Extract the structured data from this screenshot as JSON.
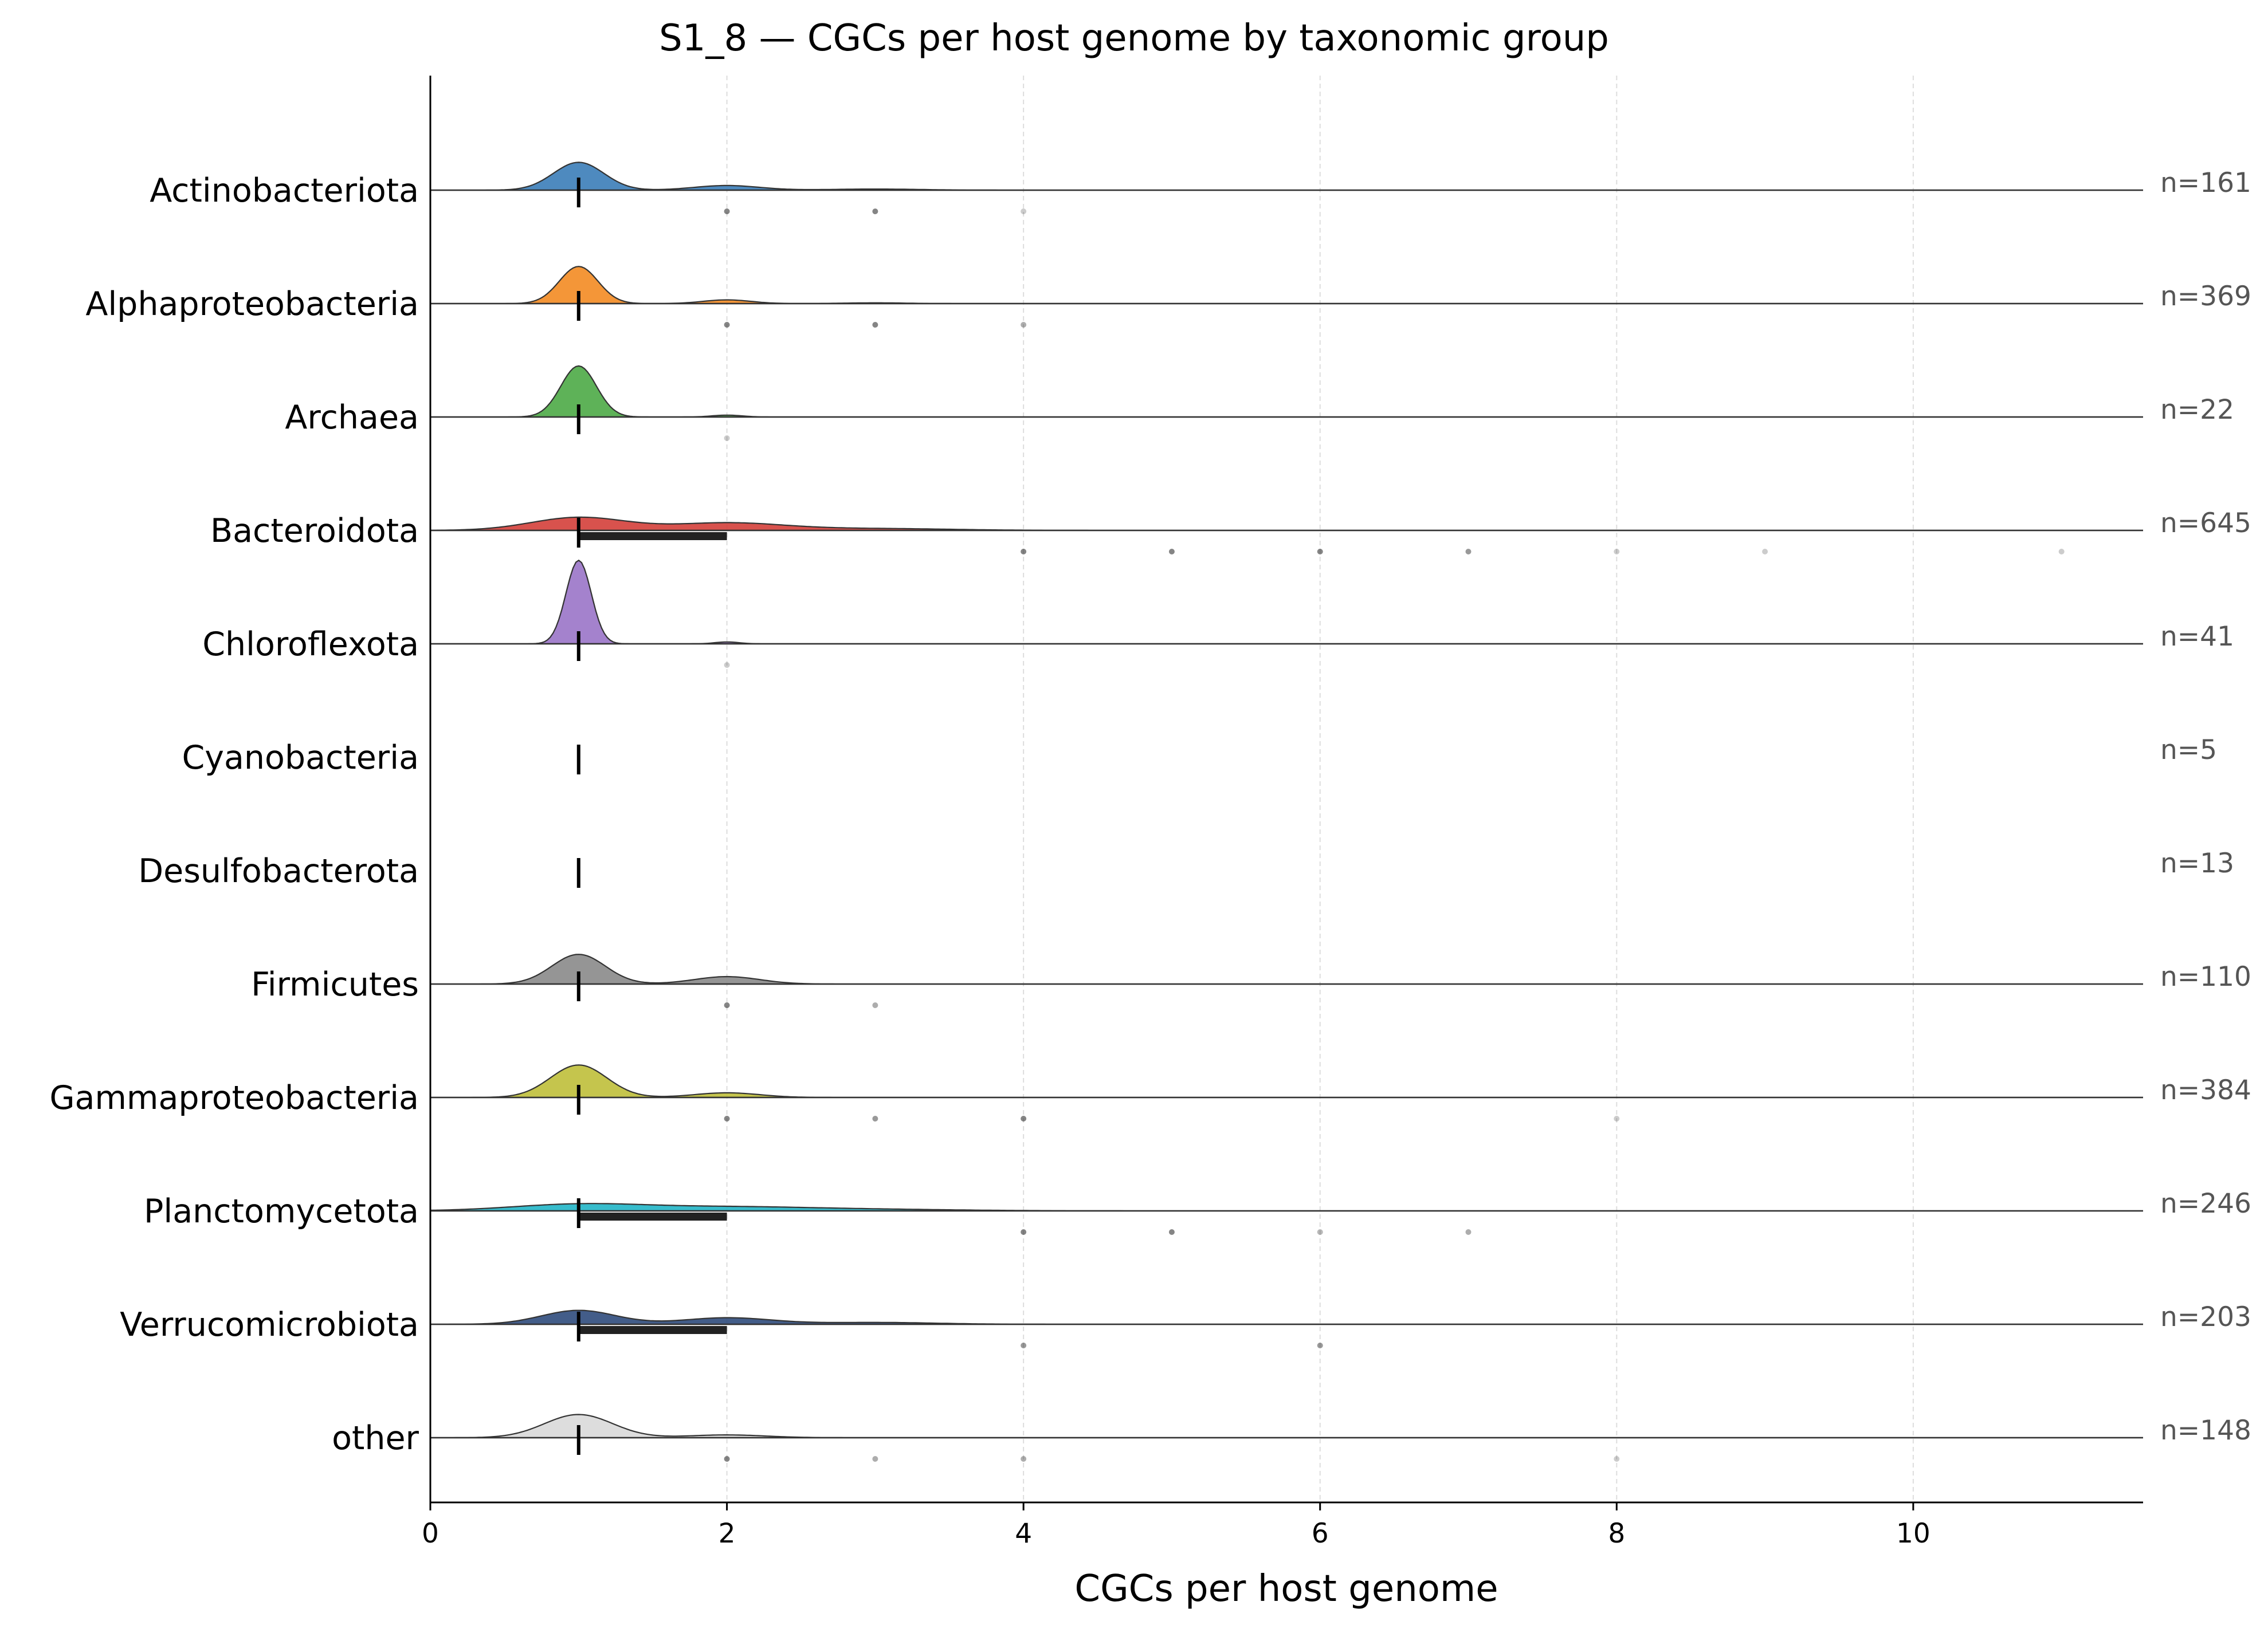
{
  "chart_data": {
    "type": "ridgeline",
    "title": "S1_8 — CGCs per host genome by taxonomic group",
    "xlabel": "CGCs per host genome",
    "xlim": [
      0,
      11.55
    ],
    "xticks": [
      0,
      2,
      4,
      6,
      8,
      10
    ],
    "grid": "vertical dashed",
    "series": [
      {
        "name": "Actinobacteriota",
        "n_label": "n=161",
        "color": "#3b7db8",
        "n": 161,
        "median": 1,
        "q1": 1,
        "q3": 1,
        "modes": [
          [
            1,
            0.3,
            0.17
          ],
          [
            2,
            0.05,
            0.22
          ],
          [
            3,
            0.012,
            0.3
          ]
        ],
        "points": [
          [
            2,
            0.6
          ],
          [
            3,
            0.6
          ],
          [
            4,
            0.25
          ]
        ]
      },
      {
        "name": "Alphaproteobacteria",
        "n_label": "n=369",
        "color": "#f38b22",
        "n": 369,
        "median": 1,
        "q1": 1,
        "q3": 1,
        "modes": [
          [
            1,
            0.4,
            0.13
          ],
          [
            2,
            0.04,
            0.16
          ],
          [
            3,
            0.008,
            0.2
          ]
        ],
        "points": [
          [
            2,
            0.6
          ],
          [
            3,
            0.6
          ],
          [
            4,
            0.4
          ]
        ]
      },
      {
        "name": "Archaea",
        "n_label": "n=22",
        "color": "#4caa46",
        "n": 22,
        "median": 1,
        "q1": 1,
        "q3": 1,
        "modes": [
          [
            1,
            0.55,
            0.12
          ],
          [
            2,
            0.02,
            0.1
          ]
        ],
        "points": [
          [
            2,
            0.25
          ]
        ]
      },
      {
        "name": "Bacteroidota",
        "n_label": "n=645",
        "color": "#d43f3a",
        "n": 645,
        "median": 1,
        "q1": 1,
        "q3": 2,
        "modes": [
          [
            1,
            0.14,
            0.32
          ],
          [
            2,
            0.08,
            0.38
          ],
          [
            3,
            0.02,
            0.5
          ]
        ],
        "points": [
          [
            4,
            0.6
          ],
          [
            5,
            0.6
          ],
          [
            6,
            0.6
          ],
          [
            7,
            0.5
          ],
          [
            8,
            0.25
          ],
          [
            9,
            0.25
          ],
          [
            11,
            0.25
          ]
        ]
      },
      {
        "name": "Chloroflexota",
        "n_label": "n=41",
        "color": "#9a74c8",
        "n": 41,
        "median": 1,
        "q1": 1,
        "q3": 1,
        "modes": [
          [
            1,
            0.9,
            0.085
          ],
          [
            2,
            0.02,
            0.08
          ]
        ],
        "points": [
          [
            2,
            0.25
          ]
        ]
      },
      {
        "name": "Cyanobacteria",
        "n_label": "n=5",
        "color": "#8c564b",
        "n": 5,
        "median": 1,
        "q1": 1,
        "q3": 1,
        "modes": [],
        "points": []
      },
      {
        "name": "Desulfobacterota",
        "n_label": "n=13",
        "color": "#e377c2",
        "n": 13,
        "median": 1,
        "q1": 1,
        "q3": 1,
        "modes": [],
        "points": []
      },
      {
        "name": "Firmicutes",
        "n_label": "n=110",
        "color": "#8a8a8a",
        "n": 110,
        "median": 1,
        "q1": 1,
        "q3": 1,
        "modes": [
          [
            1,
            0.32,
            0.18
          ],
          [
            2,
            0.08,
            0.22
          ]
        ],
        "points": [
          [
            2,
            0.6
          ],
          [
            3,
            0.4
          ]
        ]
      },
      {
        "name": "Gammaproteobacteria",
        "n_label": "n=384",
        "color": "#bfbf3a",
        "n": 384,
        "median": 1,
        "q1": 1,
        "q3": 1,
        "modes": [
          [
            1,
            0.35,
            0.19
          ],
          [
            2,
            0.05,
            0.22
          ]
        ],
        "points": [
          [
            2,
            0.6
          ],
          [
            3,
            0.5
          ],
          [
            4,
            0.6
          ],
          [
            8,
            0.25
          ]
        ]
      },
      {
        "name": "Planctomycetota",
        "n_label": "n=246",
        "color": "#21b5c7",
        "n": 246,
        "median": 1,
        "q1": 1,
        "q3": 2,
        "modes": [
          [
            1,
            0.07,
            0.45
          ],
          [
            2,
            0.04,
            0.55
          ],
          [
            3,
            0.015,
            0.6
          ]
        ],
        "points": [
          [
            4,
            0.6
          ],
          [
            5,
            0.6
          ],
          [
            6,
            0.35
          ],
          [
            7,
            0.4
          ]
        ]
      },
      {
        "name": "Verrucomicrobiota",
        "n_label": "n=203",
        "color": "#2f4b7c",
        "n": 203,
        "median": 1,
        "q1": 1,
        "q3": 2,
        "modes": [
          [
            1,
            0.15,
            0.25
          ],
          [
            2,
            0.07,
            0.3
          ],
          [
            3,
            0.02,
            0.4
          ]
        ],
        "points": [
          [
            4,
            0.5
          ],
          [
            6,
            0.5
          ]
        ]
      },
      {
        "name": "other",
        "n_label": "n=148",
        "color": "#d9d9d9",
        "n": 148,
        "median": 1,
        "q1": 1,
        "q3": 1,
        "modes": [
          [
            1,
            0.25,
            0.23
          ],
          [
            2,
            0.03,
            0.26
          ]
        ],
        "points": [
          [
            2,
            0.6
          ],
          [
            3,
            0.4
          ],
          [
            4,
            0.4
          ],
          [
            8,
            0.25
          ]
        ]
      }
    ]
  }
}
